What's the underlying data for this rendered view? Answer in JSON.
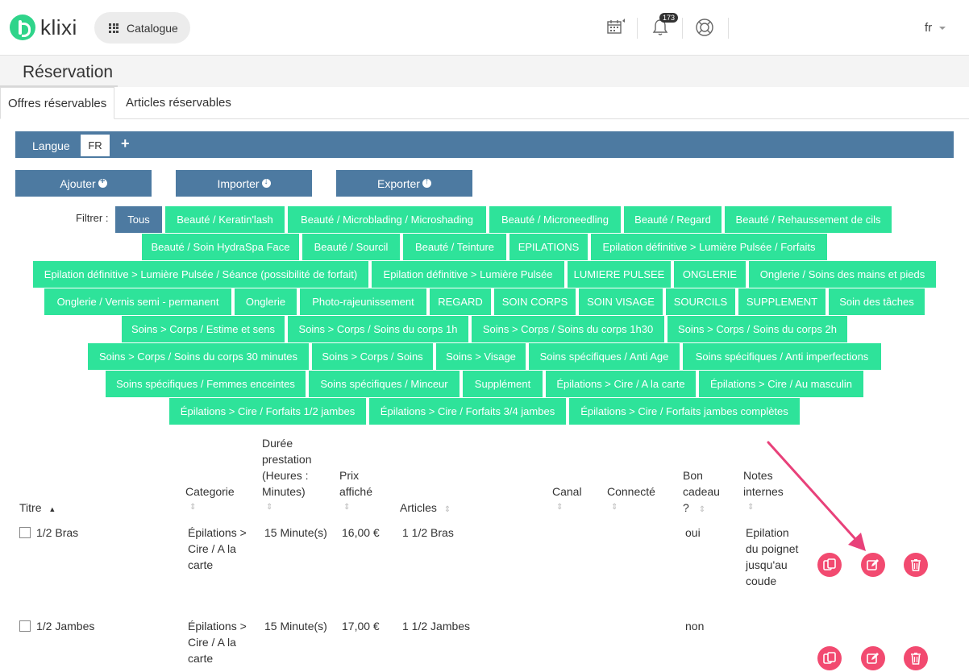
{
  "header": {
    "brand": "klixi",
    "catalogue_label": "Catalogue",
    "notification_count": "173",
    "language": "fr",
    "icons": [
      "calendar-icon",
      "bell-icon",
      "help-icon",
      "grid-icon"
    ]
  },
  "page": {
    "title": "Réservation",
    "tabs": [
      {
        "label": "Offres réservables",
        "active": true
      },
      {
        "label": "Articles réservables",
        "active": false
      }
    ]
  },
  "langbar": {
    "label": "Langue",
    "selected": "FR",
    "add": "+"
  },
  "actions": {
    "add": "Ajouter",
    "import": "Importer",
    "export": "Exporter"
  },
  "filters": {
    "label": "Filtrer :",
    "chips": [
      "Tous",
      "Beauté / Keratin'lash",
      "Beauté / Microblading / Microshading",
      "Beauté / Microneedling",
      "Beauté / Regard",
      "Beauté / Rehaussement de cils",
      "Beauté / Soin HydraSpa Face",
      "Beauté / Sourcil",
      "Beauté / Teinture",
      "EPILATIONS",
      "Epilation définitive > Lumière Pulsée / Forfaits",
      "Epilation définitive > Lumière Pulsée / Séance (possibilité de forfait)",
      "Epilation définitive > Lumière Pulsée",
      "LUMIERE PULSEE",
      "ONGLERIE",
      "Onglerie / Soins des mains et pieds",
      "Onglerie / Vernis semi - permanent",
      "Onglerie",
      "Photo-rajeunissement",
      "REGARD",
      "SOIN CORPS",
      "SOIN VISAGE",
      "SOURCILS",
      "SUPPLEMENT",
      "Soin des tâches",
      "Soins > Corps / Estime et sens",
      "Soins > Corps / Soins du corps 1h",
      "Soins > Corps / Soins du corps 1h30",
      "Soins > Corps / Soins du corps 2h",
      "Soins > Corps / Soins du corps 30 minutes",
      "Soins > Corps / Soins",
      "Soins > Visage",
      "Soins spécifiques / Anti Age",
      "Soins spécifiques / Anti imperfections",
      "Soins spécifiques / Femmes enceintes",
      "Soins spécifiques / Minceur",
      "Supplément",
      "Épilations > Cire / A la carte",
      "Épilations > Cire / Au masculin",
      "Épilations > Cire / Forfaits 1/2 jambes",
      "Épilations > Cire / Forfaits 3/4 jambes",
      "Épilations > Cire / Forfaits jambes complètes"
    ]
  },
  "table": {
    "headers": {
      "title": "Titre",
      "category": "Categorie",
      "duration": [
        "Durée",
        "prestation",
        "(Heures :",
        "Minutes)"
      ],
      "price": [
        "Prix",
        "affiché"
      ],
      "articles": "Articles",
      "canal": "Canal",
      "connected": "Connecté",
      "gift": [
        "Bon",
        "cadeau",
        "?"
      ],
      "notes": [
        "Notes",
        "internes"
      ]
    },
    "rows": [
      {
        "title": "1/2 Bras",
        "category": [
          "Épilations >",
          "Cire / A la",
          "carte"
        ],
        "duration": "15 Minute(s)",
        "price": "16,00 €",
        "articles": "1 1/2 Bras",
        "gift": "oui",
        "notes": [
          "Epilation",
          "du poignet",
          "jusqu'au",
          "coude"
        ]
      },
      {
        "title": "1/2 Jambes",
        "category": [
          "Épilations >",
          "Cire / A la",
          "carte"
        ],
        "duration": "15 Minute(s)",
        "price": "17,00 €",
        "articles": "1 1/2 Jambes",
        "gift": "non",
        "notes": []
      }
    ]
  },
  "colors": {
    "accent_blue": "#4d7aa1",
    "chip_green": "#2ee39a",
    "brand_green": "#2fd48a",
    "row_action_pink": "#f24a70",
    "annotation_arrow": "#e8417a"
  }
}
